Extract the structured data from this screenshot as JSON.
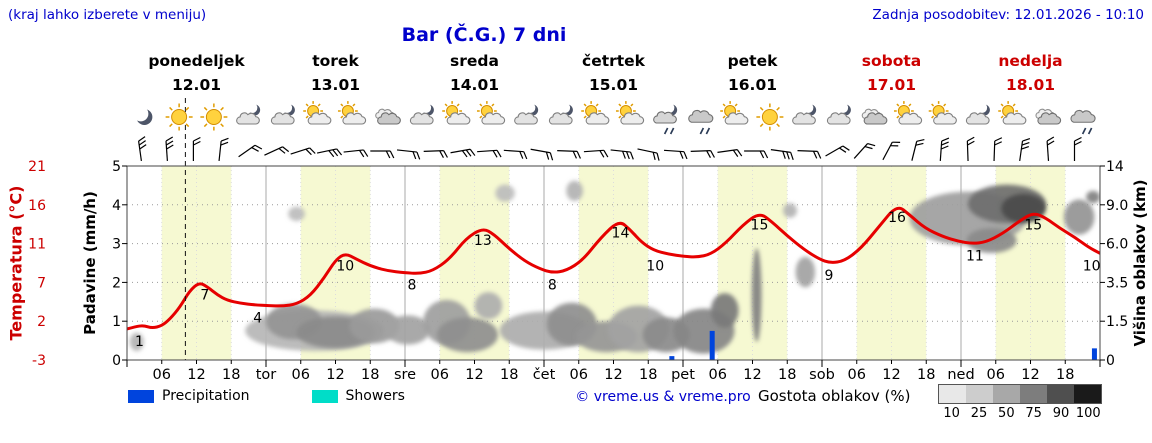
{
  "header": {
    "hint": "(kraj lahko izberete v meniju)",
    "updated": "Zadnja posodobitev: 12.01.2026 - 10:10",
    "title": "Bar (Č.G.) 7 dni"
  },
  "colors": {
    "accent_blue": "#0000cc",
    "red": "#cc0000",
    "temp_curve": "#e60000",
    "precip_bar": "#0044dd",
    "showers": "#00ddc8",
    "day_band": "#f6f9d2",
    "density_scale": [
      "#e8e8e8",
      "#cdcdcd",
      "#a8a8a8",
      "#7d7d7d",
      "#4f4f4f",
      "#1a1a1a"
    ]
  },
  "days": [
    {
      "name": "ponedeljek",
      "date": "12.01",
      "color": "black",
      "icons": [
        "moon",
        "sun",
        "sun",
        "cloud-moon"
      ]
    },
    {
      "name": "torek",
      "date": "13.01",
      "color": "black",
      "icons": [
        "cloud-moon",
        "sun-cloud",
        "sun-cloud",
        "cloud"
      ]
    },
    {
      "name": "sreda",
      "date": "14.01",
      "color": "black",
      "icons": [
        "cloud-moon",
        "sun-cloud",
        "sun-cloud",
        "cloud-moon"
      ]
    },
    {
      "name": "četrtek",
      "date": "15.01",
      "color": "black",
      "icons": [
        "cloud-moon",
        "sun-cloud",
        "sun-cloud",
        "cloud-moon-rain"
      ]
    },
    {
      "name": "petek",
      "date": "16.01",
      "color": "black",
      "icons": [
        "cloud-rain",
        "sun-cloud",
        "sun",
        "cloud-moon"
      ]
    },
    {
      "name": "sobota",
      "date": "17.01",
      "color": "red",
      "icons": [
        "cloud-moon",
        "cloud",
        "sun-cloud",
        "sun-cloud"
      ]
    },
    {
      "name": "nedelja",
      "date": "18.01",
      "color": "red",
      "icons": [
        "cloud-moon",
        "cloud-sun",
        "cloud",
        "cloud-rain"
      ]
    }
  ],
  "axes": {
    "temp": {
      "label": "Temperatura (°C)",
      "ticks": [
        "21",
        "16",
        "11",
        "7",
        "2",
        "-3"
      ]
    },
    "precip": {
      "label": "Padavine (mm/h)",
      "ticks": [
        "5",
        "4",
        "3",
        "2",
        "1",
        "0"
      ]
    },
    "cloudheight": {
      "label": "Višina oblakov (km)",
      "ticks": [
        "14",
        "9.0",
        "6.0",
        "3.5",
        "1.5",
        "0"
      ]
    },
    "x": {
      "hours": [
        "06",
        "12",
        "18"
      ],
      "dayabbr": [
        "tor",
        "sre",
        "čet",
        "pet",
        "sob",
        "ned"
      ]
    }
  },
  "legend": {
    "precipitation": "Precipitation",
    "showers": "Showers",
    "credit": "© vreme.us & vreme.pro",
    "cloud_density": "Gostota oblakov (%)",
    "density_ticks": [
      "10",
      "25",
      "50",
      "75",
      "90",
      "100"
    ]
  },
  "chart_data": {
    "type": "line",
    "x_unit": "days from Monday 00:00 (0..7)",
    "ylim_temp": [
      -3,
      21
    ],
    "ylim_precip": [
      0,
      5
    ],
    "ylim_cloud_km": [
      0,
      14
    ],
    "now_t": 0.42,
    "temperature": {
      "series": [
        [
          0,
          1.0
        ],
        [
          0.06,
          1.3
        ],
        [
          0.12,
          1.45
        ],
        [
          0.18,
          1.1
        ],
        [
          0.25,
          1.4
        ],
        [
          0.31,
          2.3
        ],
        [
          0.38,
          3.8
        ],
        [
          0.45,
          5.9
        ],
        [
          0.52,
          7.0
        ],
        [
          0.58,
          6.4
        ],
        [
          0.65,
          5.4
        ],
        [
          0.72,
          4.7
        ],
        [
          0.82,
          4.3
        ],
        [
          0.92,
          4.1
        ],
        [
          1.02,
          4.0
        ],
        [
          1.12,
          3.95
        ],
        [
          1.22,
          4.2
        ],
        [
          1.32,
          5.3
        ],
        [
          1.42,
          7.5
        ],
        [
          1.5,
          9.3
        ],
        [
          1.57,
          10.0
        ],
        [
          1.65,
          9.4
        ],
        [
          1.75,
          8.7
        ],
        [
          1.87,
          8.2
        ],
        [
          2.0,
          8.0
        ],
        [
          2.1,
          7.9
        ],
        [
          2.2,
          8.2
        ],
        [
          2.32,
          9.4
        ],
        [
          2.44,
          11.7
        ],
        [
          2.56,
          13.0
        ],
        [
          2.64,
          12.2
        ],
        [
          2.74,
          10.6
        ],
        [
          2.86,
          9.2
        ],
        [
          2.97,
          8.4
        ],
        [
          3.06,
          8.0
        ],
        [
          3.16,
          8.2
        ],
        [
          3.28,
          9.3
        ],
        [
          3.41,
          11.8
        ],
        [
          3.54,
          14.0
        ],
        [
          3.62,
          12.8
        ],
        [
          3.7,
          11.2
        ],
        [
          3.79,
          10.3
        ],
        [
          3.9,
          9.9
        ],
        [
          4.0,
          9.7
        ],
        [
          4.1,
          9.6
        ],
        [
          4.2,
          9.9
        ],
        [
          4.31,
          11.1
        ],
        [
          4.43,
          13.4
        ],
        [
          4.55,
          15.0
        ],
        [
          4.64,
          13.8
        ],
        [
          4.75,
          12.0
        ],
        [
          4.87,
          10.4
        ],
        [
          4.98,
          9.4
        ],
        [
          5.06,
          9.0
        ],
        [
          5.16,
          9.2
        ],
        [
          5.28,
          10.5
        ],
        [
          5.41,
          13.2
        ],
        [
          5.54,
          16.0
        ],
        [
          5.63,
          14.7
        ],
        [
          5.74,
          13.0
        ],
        [
          5.87,
          11.9
        ],
        [
          5.98,
          11.3
        ],
        [
          6.08,
          11.0
        ],
        [
          6.18,
          11.2
        ],
        [
          6.3,
          12.3
        ],
        [
          6.42,
          13.9
        ],
        [
          6.52,
          15.0
        ],
        [
          6.61,
          14.3
        ],
        [
          6.71,
          13.0
        ],
        [
          6.82,
          11.8
        ],
        [
          6.92,
          10.6
        ],
        [
          7.0,
          10.0
        ]
      ],
      "labels": [
        {
          "t": 0.09,
          "v": 1
        },
        {
          "t": 0.56,
          "v": 7
        },
        {
          "t": 0.94,
          "v": 4
        },
        {
          "t": 1.57,
          "v": 10
        },
        {
          "t": 2.05,
          "v": 8
        },
        {
          "t": 2.56,
          "v": 13
        },
        {
          "t": 3.06,
          "v": 8
        },
        {
          "t": 3.55,
          "v": 14
        },
        {
          "t": 3.8,
          "v": 10
        },
        {
          "t": 4.55,
          "v": 15
        },
        {
          "t": 5.05,
          "v": 9
        },
        {
          "t": 5.54,
          "v": 16
        },
        {
          "t": 6.1,
          "v": 11
        },
        {
          "t": 6.52,
          "v": 15
        },
        {
          "t": 6.94,
          "v": 10
        }
      ]
    },
    "precip_bars": [
      {
        "t": 3.92,
        "mm": 0.1
      },
      {
        "t": 4.21,
        "mm": 0.75
      },
      {
        "t": 6.96,
        "mm": 0.3
      }
    ],
    "clouds": [
      {
        "t": 0.07,
        "km": 0.7,
        "rt": 0.05,
        "rkm": 0.35,
        "d": 0.3
      },
      {
        "t": 1.22,
        "km": 8.3,
        "rt": 0.06,
        "rkm": 0.55,
        "d": 0.25
      },
      {
        "t": 1.35,
        "km": 1.2,
        "rt": 0.5,
        "rkm": 0.85,
        "d": 0.28
      },
      {
        "t": 1.2,
        "km": 1.6,
        "rt": 0.2,
        "rkm": 0.8,
        "d": 0.45
      },
      {
        "t": 1.5,
        "km": 1.1,
        "rt": 0.28,
        "rkm": 0.65,
        "d": 0.5
      },
      {
        "t": 1.78,
        "km": 1.4,
        "rt": 0.18,
        "rkm": 0.75,
        "d": 0.42
      },
      {
        "t": 2.02,
        "km": 1.2,
        "rt": 0.16,
        "rkm": 0.6,
        "d": 0.38
      },
      {
        "t": 2.3,
        "km": 1.6,
        "rt": 0.17,
        "rkm": 1.0,
        "d": 0.4
      },
      {
        "t": 2.45,
        "km": 1.0,
        "rt": 0.22,
        "rkm": 0.7,
        "d": 0.48
      },
      {
        "t": 2.6,
        "km": 2.3,
        "rt": 0.1,
        "rkm": 0.7,
        "d": 0.32
      },
      {
        "t": 2.72,
        "km": 10.5,
        "rt": 0.07,
        "rkm": 1.1,
        "d": 0.25
      },
      {
        "t": 3.22,
        "km": 10.8,
        "rt": 0.06,
        "rkm": 1.3,
        "d": 0.3
      },
      {
        "t": 3.0,
        "km": 1.2,
        "rt": 0.32,
        "rkm": 0.8,
        "d": 0.33
      },
      {
        "t": 3.2,
        "km": 1.5,
        "rt": 0.18,
        "rkm": 0.95,
        "d": 0.48
      },
      {
        "t": 3.45,
        "km": 0.9,
        "rt": 0.22,
        "rkm": 0.6,
        "d": 0.44
      },
      {
        "t": 3.68,
        "km": 1.3,
        "rt": 0.22,
        "rkm": 1.0,
        "d": 0.38
      },
      {
        "t": 3.88,
        "km": 1.0,
        "rt": 0.17,
        "rkm": 0.7,
        "d": 0.5
      },
      {
        "t": 4.15,
        "km": 1.2,
        "rt": 0.22,
        "rkm": 0.95,
        "d": 0.52
      },
      {
        "t": 4.3,
        "km": 2.1,
        "rt": 0.1,
        "rkm": 0.85,
        "d": 0.58
      },
      {
        "t": 4.53,
        "km": 3.2,
        "rt": 0.035,
        "rkm": 2.5,
        "d": 0.55
      },
      {
        "t": 4.77,
        "km": 8.6,
        "rt": 0.05,
        "rkm": 0.6,
        "d": 0.3
      },
      {
        "t": 4.88,
        "km": 4.2,
        "rt": 0.07,
        "rkm": 0.95,
        "d": 0.38
      },
      {
        "t": 6.05,
        "km": 8.3,
        "rt": 0.42,
        "rkm": 2.4,
        "d": 0.4
      },
      {
        "t": 6.33,
        "km": 9.6,
        "rt": 0.28,
        "rkm": 2.0,
        "d": 0.65
      },
      {
        "t": 6.45,
        "km": 9.0,
        "rt": 0.16,
        "rkm": 1.4,
        "d": 0.82
      },
      {
        "t": 6.22,
        "km": 6.3,
        "rt": 0.18,
        "rkm": 0.9,
        "d": 0.5
      },
      {
        "t": 6.85,
        "km": 8.2,
        "rt": 0.11,
        "rkm": 1.5,
        "d": 0.45
      },
      {
        "t": 6.95,
        "km": 10.0,
        "rt": 0.05,
        "rkm": 0.8,
        "d": 0.55
      }
    ],
    "wind_barbs": [
      {
        "a": -8,
        "n": 3
      },
      {
        "a": -4,
        "n": 3
      },
      {
        "a": 0,
        "n": 2
      },
      {
        "a": 6,
        "n": 2
      },
      {
        "a": 55,
        "n": 2
      },
      {
        "a": 65,
        "n": 2
      },
      {
        "a": 72,
        "n": 2
      },
      {
        "a": 78,
        "n": 3
      },
      {
        "a": 84,
        "n": 2
      },
      {
        "a": 90,
        "n": 2
      },
      {
        "a": 96,
        "n": 2
      },
      {
        "a": 88,
        "n": 2
      },
      {
        "a": 80,
        "n": 3
      },
      {
        "a": 86,
        "n": 2
      },
      {
        "a": 94,
        "n": 2
      },
      {
        "a": 100,
        "n": 2
      },
      {
        "a": 92,
        "n": 2
      },
      {
        "a": 86,
        "n": 2
      },
      {
        "a": 96,
        "n": 3
      },
      {
        "a": 102,
        "n": 2
      },
      {
        "a": 94,
        "n": 2
      },
      {
        "a": 88,
        "n": 2
      },
      {
        "a": 82,
        "n": 2
      },
      {
        "a": 90,
        "n": 2
      },
      {
        "a": 98,
        "n": 3
      },
      {
        "a": 92,
        "n": 2
      },
      {
        "a": 60,
        "n": 2
      },
      {
        "a": 42,
        "n": 2
      },
      {
        "a": 28,
        "n": 2
      },
      {
        "a": 14,
        "n": 2
      },
      {
        "a": 4,
        "n": 3
      },
      {
        "a": -2,
        "n": 2
      },
      {
        "a": 2,
        "n": 2
      },
      {
        "a": 8,
        "n": 3
      },
      {
        "a": -4,
        "n": 2
      },
      {
        "a": 0,
        "n": 2
      }
    ]
  }
}
